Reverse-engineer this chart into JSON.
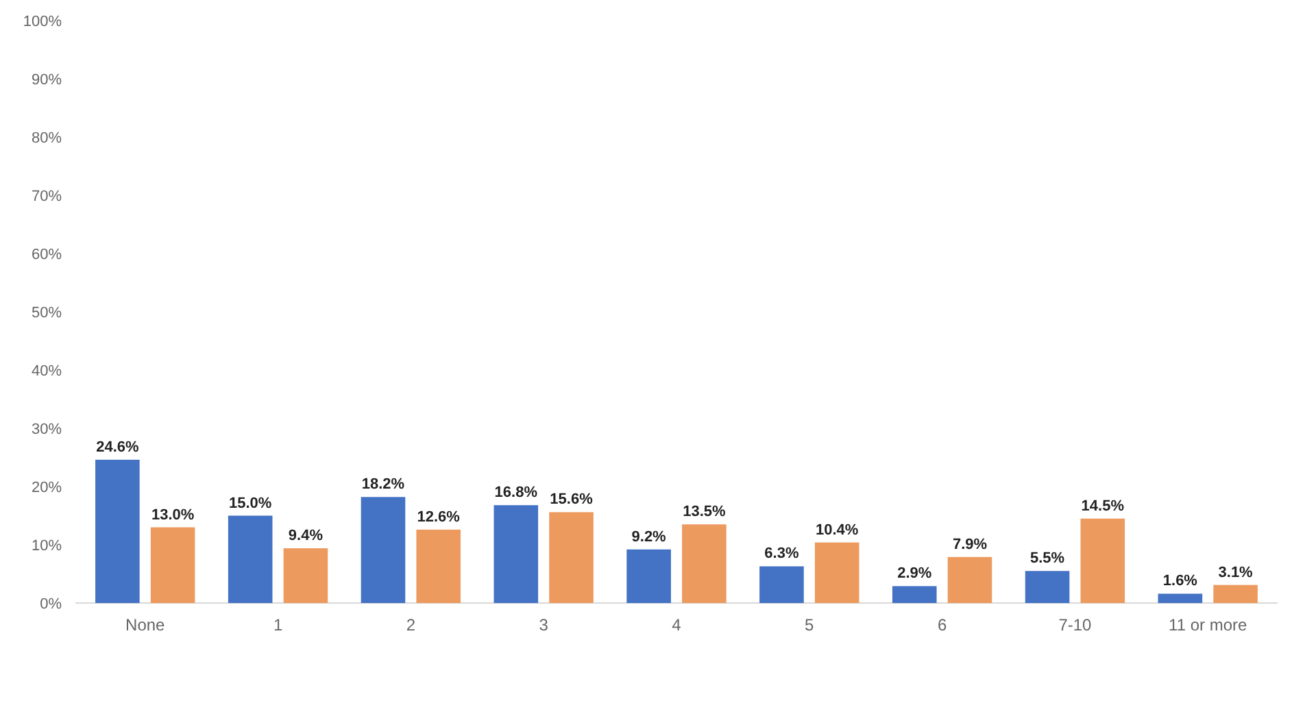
{
  "chart_data": {
    "type": "bar",
    "categories": [
      "None",
      "1",
      "2",
      "3",
      "4",
      "5",
      "6",
      "7-10",
      "11 or more"
    ],
    "series": [
      {
        "color": "#4472c4",
        "values": [
          24.6,
          15.0,
          18.2,
          16.8,
          9.2,
          6.3,
          2.9,
          5.5,
          1.6
        ],
        "value_labels": [
          "24.6%",
          "15.0%",
          "18.2%",
          "16.8%",
          "9.2%",
          "6.3%",
          "2.9%",
          "5.5%",
          "1.6%"
        ]
      },
      {
        "color": "#ed9a5e",
        "values": [
          13.0,
          9.4,
          12.6,
          15.6,
          13.5,
          10.4,
          7.9,
          14.5,
          3.1
        ],
        "value_labels": [
          "13.0%",
          "9.4%",
          "12.6%",
          "15.6%",
          "13.5%",
          "10.4%",
          "7.9%",
          "14.5%",
          "3.1%"
        ]
      }
    ],
    "ylim": [
      0,
      100
    ],
    "yticks": [
      {
        "value": 0,
        "label": "0%"
      },
      {
        "value": 10,
        "label": "10%"
      },
      {
        "value": 20,
        "label": "20%"
      },
      {
        "value": 30,
        "label": "30%"
      },
      {
        "value": 40,
        "label": "40%"
      },
      {
        "value": 50,
        "label": "50%"
      },
      {
        "value": 60,
        "label": "60%"
      },
      {
        "value": 70,
        "label": "70%"
      },
      {
        "value": 80,
        "label": "80%"
      },
      {
        "value": 90,
        "label": "90%"
      },
      {
        "value": 100,
        "label": "100%"
      }
    ],
    "grid": false
  }
}
